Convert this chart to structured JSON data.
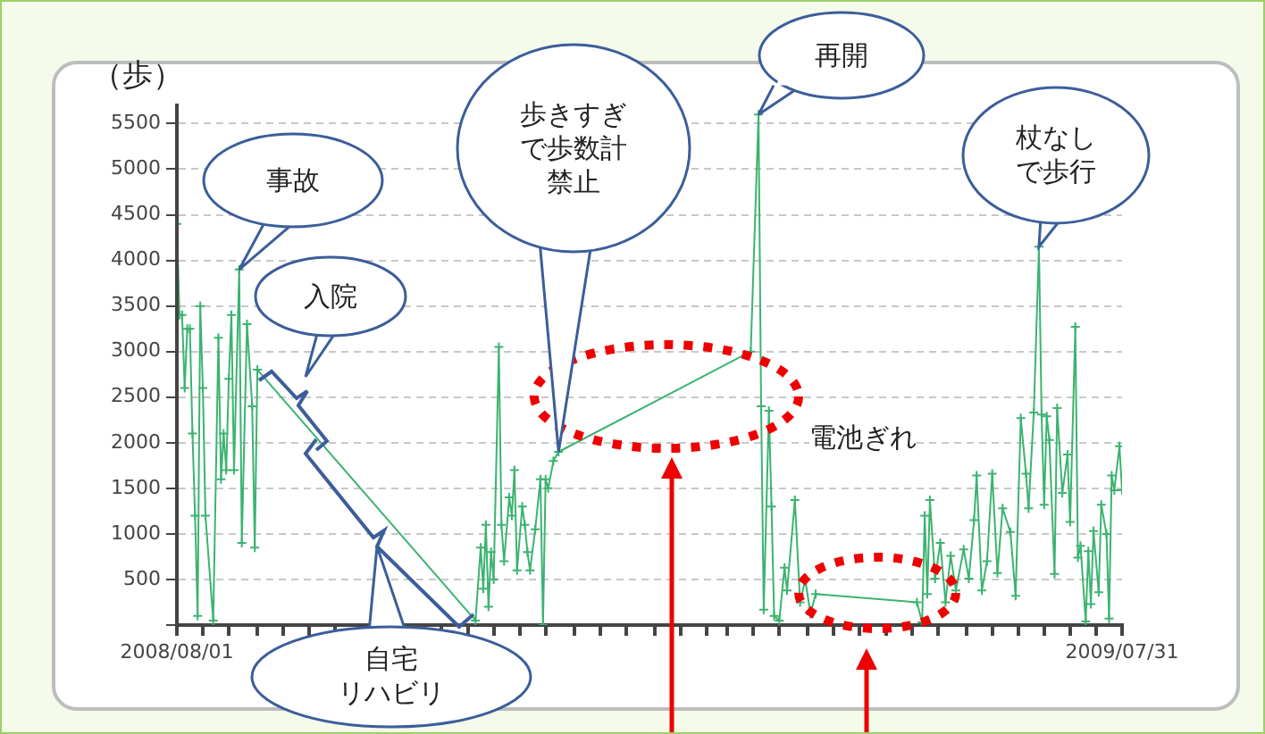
{
  "chart_data": {
    "type": "line",
    "ylabel": "（歩）",
    "marker": "cross",
    "grid": "y",
    "xlim": [
      "2008-08-01",
      "2009-07-31"
    ],
    "xticks": [
      {
        "value": "2008-08-01",
        "label": "2008/08/01"
      },
      {
        "value": "2008-08-11",
        "label": null
      },
      {
        "value": "2008-08-21",
        "label": null
      },
      {
        "value": "2008-09-01",
        "label": null
      },
      {
        "value": "2008-09-11",
        "label": null
      },
      {
        "value": "2008-09-21",
        "label": null
      },
      {
        "value": "2008-10-01",
        "label": null
      },
      {
        "value": "2008-10-11",
        "label": null
      },
      {
        "value": "2008-10-21",
        "label": null
      },
      {
        "value": "2008-11-01",
        "label": null
      },
      {
        "value": "2008-11-11",
        "label": null
      },
      {
        "value": "2008-11-21",
        "label": null
      },
      {
        "value": "2008-12-01",
        "label": null
      },
      {
        "value": "2008-12-11",
        "label": null
      },
      {
        "value": "2008-12-21",
        "label": null
      },
      {
        "value": "2009-01-01",
        "label": null
      },
      {
        "value": "2009-01-11",
        "label": null
      },
      {
        "value": "2009-01-21",
        "label": null
      },
      {
        "value": "2009-02-01",
        "label": null
      },
      {
        "value": "2009-02-11",
        "label": null
      },
      {
        "value": "2009-02-21",
        "label": null
      },
      {
        "value": "2009-03-01",
        "label": null
      },
      {
        "value": "2009-03-11",
        "label": null
      },
      {
        "value": "2009-03-21",
        "label": null
      },
      {
        "value": "2009-04-01",
        "label": null
      },
      {
        "value": "2009-04-11",
        "label": null
      },
      {
        "value": "2009-04-21",
        "label": null
      },
      {
        "value": "2009-05-01",
        "label": null
      },
      {
        "value": "2009-05-11",
        "label": null
      },
      {
        "value": "2009-05-21",
        "label": null
      },
      {
        "value": "2009-06-01",
        "label": null
      },
      {
        "value": "2009-06-11",
        "label": null
      },
      {
        "value": "2009-06-21",
        "label": null
      },
      {
        "value": "2009-07-01",
        "label": null
      },
      {
        "value": "2009-07-11",
        "label": null
      },
      {
        "value": "2009-07-21",
        "label": null
      },
      {
        "value": "2009-07-31",
        "label": "2009/07/31"
      }
    ],
    "ylim": [
      0,
      5700
    ],
    "yticks": [
      {
        "value": 0,
        "label": null
      },
      500,
      1000,
      1500,
      2000,
      2500,
      3000,
      3500,
      4000,
      4500,
      5000,
      5500
    ],
    "x": [
      "2008-08-01",
      "2008-08-02",
      "2008-08-03",
      "2008-08-04",
      "2008-08-05",
      "2008-08-06",
      "2008-08-07",
      "2008-08-08",
      "2008-08-09",
      "2008-08-10",
      "2008-08-11",
      "2008-08-12",
      "2008-08-15",
      "2008-08-17",
      "2008-08-18",
      "2008-08-19",
      "2008-08-20",
      "2008-08-21",
      "2008-08-22",
      "2008-08-23",
      "2008-08-25",
      "2008-08-26",
      "2008-08-28",
      "2008-08-30",
      "2008-08-31",
      "2008-09-01",
      "2008-11-24",
      "2008-11-26",
      "2008-11-27",
      "2008-11-28",
      "2008-11-29",
      "2008-11-30",
      "2008-12-01",
      "2008-12-03",
      "2008-12-04",
      "2008-12-05",
      "2008-12-07",
      "2008-12-08",
      "2008-12-09",
      "2008-12-10",
      "2008-12-12",
      "2008-12-13",
      "2008-12-14",
      "2008-12-15",
      "2008-12-17",
      "2008-12-19",
      "2008-12-20",
      "2008-12-21",
      "2008-12-22",
      "2008-12-24",
      "2008-12-26",
      "2009-03-10",
      "2009-03-13",
      "2009-03-14",
      "2009-03-15",
      "2009-03-17",
      "2009-03-18",
      "2009-03-19",
      "2009-03-21",
      "2009-03-23",
      "2009-03-24",
      "2009-03-27",
      "2009-03-29",
      "2009-03-31",
      "2009-04-02",
      "2009-04-04",
      "2009-05-13",
      "2009-05-15",
      "2009-05-16",
      "2009-05-17",
      "2009-05-18",
      "2009-05-20",
      "2009-05-22",
      "2009-05-24",
      "2009-05-26",
      "2009-05-28",
      "2009-05-31",
      "2009-06-02",
      "2009-06-04",
      "2009-06-05",
      "2009-06-07",
      "2009-06-09",
      "2009-06-11",
      "2009-06-13",
      "2009-06-15",
      "2009-06-18",
      "2009-06-20",
      "2009-06-22",
      "2009-06-24",
      "2009-06-25",
      "2009-06-27",
      "2009-06-29",
      "2009-06-30",
      "2009-07-01",
      "2009-07-02",
      "2009-07-03",
      "2009-07-05",
      "2009-07-06",
      "2009-07-08",
      "2009-07-10",
      "2009-07-11",
      "2009-07-13",
      "2009-07-14",
      "2009-07-15",
      "2009-07-17",
      "2009-07-18",
      "2009-07-19",
      "2009-07-20",
      "2009-07-22",
      "2009-07-23",
      "2009-07-25",
      "2009-07-26",
      "2009-07-27",
      "2009-07-28",
      "2009-07-30",
      "2009-07-31"
    ],
    "series": [
      {
        "color": "#3cb371",
        "values": [
          4400,
          3400,
          3400,
          2600,
          3250,
          3250,
          2100,
          1200,
          100,
          3500,
          2600,
          1200,
          50,
          3150,
          1600,
          2100,
          1700,
          2700,
          3400,
          1700,
          3900,
          900,
          3300,
          2400,
          850,
          2800,
          50,
          850,
          400,
          1100,
          200,
          800,
          500,
          3050,
          1100,
          700,
          1400,
          1200,
          1700,
          600,
          1300,
          1100,
          800,
          600,
          1050,
          1600,
          0,
          1600,
          1500,
          1800,
          1900,
          3000,
          5600,
          2400,
          170,
          2350,
          1300,
          100,
          50,
          630,
          380,
          1370,
          250,
          500,
          120,
          340,
          250,
          30,
          1200,
          340,
          1370,
          510,
          900,
          250,
          760,
          380,
          830,
          510,
          1150,
          1640,
          380,
          700,
          1660,
          570,
          1280,
          1020,
          320,
          2270,
          1660,
          1280,
          2330,
          4150,
          2310,
          1320,
          2290,
          2030,
          560,
          2380,
          1450,
          1870,
          1130,
          3270,
          740,
          870,
          40,
          810,
          230,
          1030,
          360,
          1320,
          1000,
          70,
          1640,
          1480,
          1960,
          1480
        ]
      }
    ],
    "annotations": [
      {
        "text": "事故",
        "x": "2008-08-25",
        "y": 3900
      },
      "入院",
      "自宅リハビリ",
      {
        "text": "歩きすぎで歩数計禁止",
        "x": "2008-12-26",
        "y": 1900
      },
      {
        "text": "再開",
        "x": "2009-03-13",
        "y": 5600
      },
      {
        "text": "杖なしで歩行",
        "x": "2009-06-29",
        "y": 4150
      },
      "電池ぎれ"
    ]
  }
}
